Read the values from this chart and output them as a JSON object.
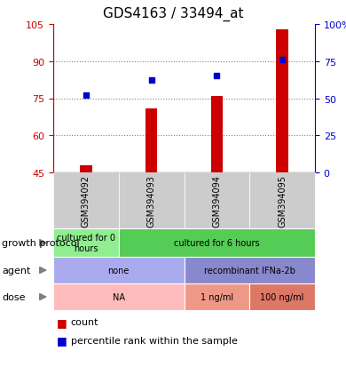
{
  "title": "GDS4163 / 33494_at",
  "samples": [
    "GSM394092",
    "GSM394093",
    "GSM394094",
    "GSM394095"
  ],
  "count_values": [
    48,
    71,
    76,
    103
  ],
  "percentile_values": [
    52,
    62,
    65,
    76
  ],
  "ylim_left": [
    45,
    105
  ],
  "ylim_right": [
    0,
    100
  ],
  "yticks_left": [
    45,
    60,
    75,
    90,
    105
  ],
  "yticks_right": [
    0,
    25,
    50,
    75,
    100
  ],
  "ytick_labels_right": [
    "0",
    "25",
    "50",
    "75",
    "100%"
  ],
  "bar_color": "#cc0000",
  "dot_color": "#0000cc",
  "metadata_rows": [
    {
      "label": "growth protocol",
      "cells": [
        {
          "text": "cultured for 0\nhours",
          "color": "#90ee90",
          "span": 1
        },
        {
          "text": "cultured for 6 hours",
          "color": "#55cc55",
          "span": 3
        }
      ]
    },
    {
      "label": "agent",
      "cells": [
        {
          "text": "none",
          "color": "#aaaaee",
          "span": 2
        },
        {
          "text": "recombinant IFNa-2b",
          "color": "#8888cc",
          "span": 2
        }
      ]
    },
    {
      "label": "dose",
      "cells": [
        {
          "text": "NA",
          "color": "#ffbbbb",
          "span": 2
        },
        {
          "text": "1 ng/ml",
          "color": "#ee9988",
          "span": 1
        },
        {
          "text": "100 ng/ml",
          "color": "#dd7766",
          "span": 1
        }
      ]
    }
  ],
  "left_axis_color": "#cc0000",
  "right_axis_color": "#0000cc",
  "sample_bg_color": "#cccccc",
  "legend_count_color": "#cc0000",
  "legend_dot_color": "#0000cc"
}
